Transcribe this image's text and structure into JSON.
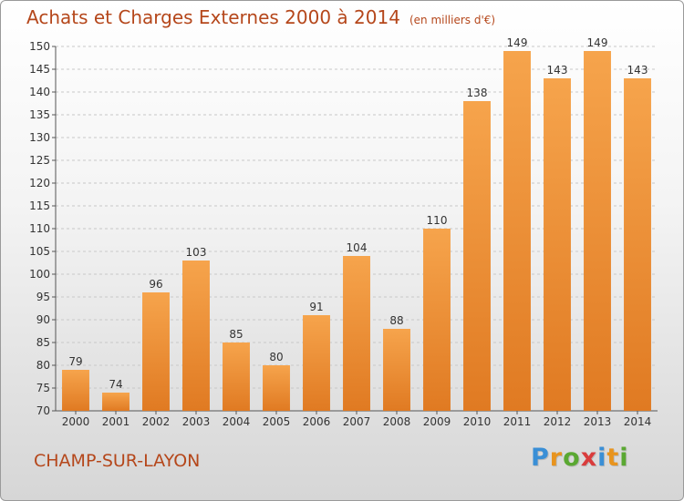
{
  "title": "Achats et Charges Externes 2000 à 2014",
  "subtitle": "(en milliers d'€)",
  "location": "CHAMP-SUR-LAYON",
  "logo": {
    "letters": [
      "P",
      "r",
      "o",
      "x",
      "i",
      "t",
      "i"
    ],
    "colors": [
      "#3a8fd6",
      "#e8941e",
      "#5aa832",
      "#d93c3c",
      "#3a8fd6",
      "#e8941e",
      "#5aa832"
    ]
  },
  "colors": {
    "title": "#b5471b",
    "bar_top": "#f6a44c",
    "bar_bottom": "#e07a22",
    "grid": "#c8c8c8"
  },
  "chart_data": {
    "type": "bar",
    "title": "Achats et Charges Externes 2000 à 2014",
    "subtitle": "(en milliers d'€)",
    "categories": [
      "2000",
      "2001",
      "2002",
      "2003",
      "2004",
      "2005",
      "2006",
      "2007",
      "2008",
      "2009",
      "2010",
      "2011",
      "2012",
      "2013",
      "2014"
    ],
    "values": [
      79,
      74,
      96,
      103,
      85,
      80,
      91,
      104,
      88,
      110,
      138,
      149,
      143,
      149,
      143
    ],
    "ylim": [
      70,
      150
    ],
    "yticks": [
      70,
      75,
      80,
      85,
      90,
      95,
      100,
      105,
      110,
      115,
      120,
      125,
      130,
      135,
      140,
      145,
      150
    ],
    "grid": true,
    "data_labels": true
  }
}
